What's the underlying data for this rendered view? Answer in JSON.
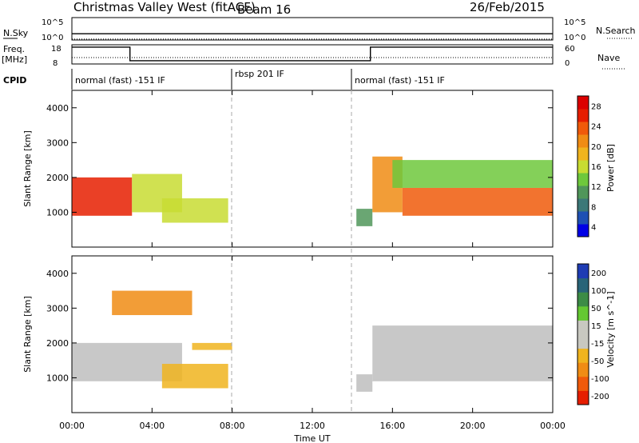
{
  "header": {
    "station": "Christmas Valley West (fitACF)",
    "beam": "Beam 16",
    "date": "26/Feb/2015"
  },
  "left_labels": {
    "nsky": "N.Sky",
    "nsky_ticks": [
      "10^5",
      "10^0"
    ],
    "freq": "Freq.",
    "freq_unit": "[MHz]",
    "freq_ticks": [
      "18",
      "8"
    ],
    "cpid": "CPID"
  },
  "right_labels": {
    "nsearch": "N.Search",
    "nsearch_ticks": [
      "10^5",
      "10^0"
    ],
    "nave": "Nave",
    "nave_ticks": [
      "60",
      "0"
    ]
  },
  "cpid_segments": [
    {
      "start": 0.0,
      "end": 8.0,
      "label": "normal (fast) -151 IF"
    },
    {
      "start": 8.0,
      "end": 14.0,
      "label": "rbsp 201 IF"
    },
    {
      "start": 14.0,
      "end": 24.0,
      "label": "normal (fast) -151 IF"
    }
  ],
  "x_axis": {
    "label": "Time UT",
    "ticks": [
      "00:00",
      "04:00",
      "08:00",
      "12:00",
      "16:00",
      "20:00",
      "00:00"
    ]
  },
  "panels": [
    {
      "ylabel": "Slant Range [km]",
      "colorbar_label": "Power [dB]",
      "colorbar_ticks": [
        "28",
        "24",
        "20",
        "16",
        "12",
        "8",
        "4"
      ]
    },
    {
      "ylabel": "Slant Range [km]",
      "colorbar_label": "Velocity [m s^-1]",
      "colorbar_ticks": [
        "200",
        "100",
        "50",
        "15",
        "-15",
        "-50",
        "-100",
        "-200"
      ]
    }
  ],
  "colors": {
    "power_scale": [
      "#0000e6",
      "#1e50b4",
      "#3c7878",
      "#50965a",
      "#6ec83c",
      "#c8dc32",
      "#f0b41e",
      "#f08c14",
      "#f05a0a",
      "#e61e00",
      "#dc0000"
    ],
    "velocity_scale": [
      "#1e3cb4",
      "#286478",
      "#3c8c46",
      "#64c832",
      "#c8c8c0",
      "#c8c8c0",
      "#f0b41e",
      "#f08c14",
      "#f05a0a",
      "#e61e00"
    ],
    "ground_scatter": "#bebebe"
  },
  "chart_data": [
    {
      "type": "line",
      "title": "N.Sky / N.Search",
      "x_unit": "hours UT",
      "xlim": [
        0,
        24
      ],
      "ylim": [
        0,
        5
      ],
      "y_scale": "log10",
      "series": [
        {
          "name": "N.Sky",
          "style": "solid",
          "x": [
            0,
            24
          ],
          "y": [
            1.4,
            1.4
          ]
        },
        {
          "name": "N.Search",
          "style": "dotted",
          "x": [
            0,
            24
          ],
          "y": [
            0.2,
            0.2
          ]
        }
      ]
    },
    {
      "type": "line",
      "title": "Freq. / Nave",
      "x_unit": "hours UT",
      "series": [
        {
          "name": "Freq.",
          "style": "solid",
          "ylim": [
            8,
            18
          ],
          "x": [
            0,
            2.9,
            2.9,
            14.9,
            14.9,
            24
          ],
          "y": [
            16.8,
            16.8,
            9.7,
            9.7,
            16.8,
            16.8
          ]
        },
        {
          "name": "Nave",
          "style": "dotted",
          "ylim": [
            0,
            60
          ],
          "x": [
            0,
            24
          ],
          "y": [
            20,
            20
          ]
        }
      ]
    },
    {
      "type": "heatmap",
      "title": "Power [dB]",
      "x_unit": "hours UT",
      "xlim": [
        0,
        24
      ],
      "ylim": [
        0,
        4500
      ],
      "y_unit": "km",
      "z_range": [
        0,
        30
      ],
      "regions": [
        {
          "t0": 0.0,
          "t1": 3.0,
          "r0": 900,
          "r1": 2000,
          "level": 26
        },
        {
          "t0": 3.0,
          "t1": 5.5,
          "r0": 1000,
          "r1": 2100,
          "level": 16
        },
        {
          "t0": 4.5,
          "t1": 7.8,
          "r0": 700,
          "r1": 1400,
          "level": 16
        },
        {
          "t0": 14.2,
          "t1": 15.0,
          "r0": 600,
          "r1": 1100,
          "level": 10
        },
        {
          "t0": 15.0,
          "t1": 16.5,
          "r0": 1000,
          "r1": 2600,
          "level": 22
        },
        {
          "t0": 16.5,
          "t1": 24.0,
          "r0": 900,
          "r1": 1700,
          "level": 24
        },
        {
          "t0": 16.0,
          "t1": 24.0,
          "r0": 1700,
          "r1": 2500,
          "level": 12
        }
      ]
    },
    {
      "type": "heatmap",
      "title": "Velocity [m s^-1]",
      "x_unit": "hours UT",
      "xlim": [
        0,
        24
      ],
      "ylim": [
        0,
        4500
      ],
      "y_unit": "km",
      "z_range": [
        -250,
        250
      ],
      "regions": [
        {
          "t0": 0.0,
          "t1": 5.5,
          "r0": 900,
          "r1": 2000,
          "level": 0,
          "ground": true
        },
        {
          "t0": 2.0,
          "t1": 6.0,
          "r0": 2800,
          "r1": 3500,
          "level": -150
        },
        {
          "t0": 4.5,
          "t1": 7.8,
          "r0": 700,
          "r1": 1400,
          "level": -60
        },
        {
          "t0": 6.0,
          "t1": 8.0,
          "r0": 1800,
          "r1": 2000,
          "level": -60
        },
        {
          "t0": 14.2,
          "t1": 15.0,
          "r0": 600,
          "r1": 1100,
          "level": 0,
          "ground": true
        },
        {
          "t0": 15.0,
          "t1": 24.0,
          "r0": 900,
          "r1": 2500,
          "level": 0,
          "ground": true
        }
      ]
    }
  ]
}
